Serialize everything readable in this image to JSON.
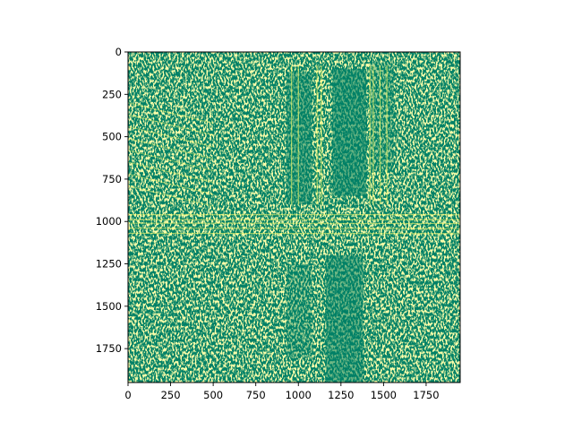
{
  "chart_data": {
    "type": "heatmap",
    "description_kind": "binary edge map displayed with imshow",
    "colormap": "summer",
    "colors": {
      "low": "#008066",
      "high": "#ffff66"
    },
    "image_extent": {
      "width": 1950,
      "height": 1950
    },
    "x_axis": {
      "range": [
        0,
        1950
      ],
      "ticks": [
        0,
        250,
        500,
        750,
        1000,
        1250,
        1500,
        1750
      ],
      "tick_labels": [
        "0",
        "250",
        "500",
        "750",
        "1000",
        "1250",
        "1500",
        "1750"
      ]
    },
    "y_axis": {
      "range": [
        0,
        1950
      ],
      "inverted": true,
      "ticks": [
        0,
        250,
        500,
        750,
        1000,
        1250,
        1500,
        1750
      ],
      "tick_labels": [
        "0",
        "250",
        "500",
        "750",
        "1000",
        "1250",
        "1500",
        "1750"
      ]
    },
    "grid": false,
    "legend": "none"
  }
}
